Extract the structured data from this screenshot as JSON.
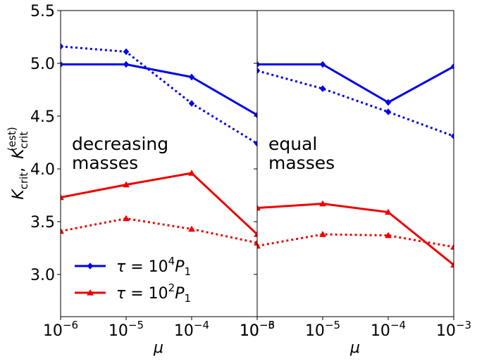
{
  "chart_data": [
    {
      "type": "line",
      "panel_label": [
        "decreasing",
        "masses"
      ],
      "xscale": "log",
      "xlim": [
        1e-06,
        0.001
      ],
      "ylim": [
        2.6,
        5.5
      ],
      "x": [
        1e-06,
        1e-05,
        0.0001,
        0.001
      ],
      "x_tick_labels": [
        "10",
        "10",
        "10",
        "10"
      ],
      "x_tick_exponents": [
        "−6",
        "−5",
        "−4",
        "−3"
      ],
      "y_ticks": [
        3.0,
        3.5,
        4.0,
        4.5,
        5.0,
        5.5
      ],
      "y_tick_labels": [
        "3.0",
        "3.5",
        "4.0",
        "4.5",
        "5.0",
        "5.5"
      ],
      "xlabel": "μ",
      "ylabel_main": "K",
      "ylabel_main_sub": "crit",
      "ylabel_sep": ",",
      "ylabel_est": "K",
      "ylabel_est_sub": "crit",
      "ylabel_est_sup": "(est)",
      "series": [
        {
          "name": "τ = 10⁴P₁",
          "style": "solid",
          "color": "#0000ee",
          "marker": "diamond",
          "values": [
            4.99,
            4.99,
            4.87,
            4.51
          ]
        },
        {
          "style": "dotted",
          "color": "#0000ee",
          "marker": "diamond",
          "values": [
            5.16,
            5.11,
            4.62,
            4.24
          ]
        },
        {
          "name": "τ = 10²P₁",
          "style": "solid",
          "color": "#ee0000",
          "marker": "triangle",
          "values": [
            3.73,
            3.85,
            3.96,
            3.38
          ]
        },
        {
          "style": "dotted",
          "color": "#ee0000",
          "marker": "triangle",
          "values": [
            3.41,
            3.53,
            3.43,
            3.3
          ]
        }
      ],
      "legend": {
        "placement": "lower-left",
        "entries": [
          {
            "base": "τ = 10",
            "sup": "4",
            "unit": "P",
            "sub": "1",
            "color": "#0000ee",
            "marker": "diamond"
          },
          {
            "base": "τ = 10",
            "sup": "2",
            "unit": "P",
            "sub": "1",
            "color": "#ee0000",
            "marker": "triangle"
          }
        ]
      }
    },
    {
      "type": "line",
      "panel_label": [
        "equal",
        "masses"
      ],
      "xscale": "log",
      "xlim": [
        1e-06,
        0.001
      ],
      "ylim": [
        2.6,
        5.5
      ],
      "x": [
        1e-06,
        1e-05,
        0.0001,
        0.001
      ],
      "x_tick_labels": [
        "10",
        "10",
        "10",
        "10"
      ],
      "x_tick_exponents": [
        "−6",
        "−5",
        "−4",
        "−3"
      ],
      "xlabel": "μ",
      "series": [
        {
          "style": "solid",
          "color": "#0000ee",
          "marker": "diamond",
          "values": [
            4.99,
            4.99,
            4.63,
            4.97
          ]
        },
        {
          "style": "dotted",
          "color": "#0000ee",
          "marker": "diamond",
          "values": [
            4.93,
            4.76,
            4.54,
            4.31
          ]
        },
        {
          "style": "solid",
          "color": "#ee0000",
          "marker": "triangle",
          "values": [
            3.63,
            3.67,
            3.59,
            3.09
          ]
        },
        {
          "style": "dotted",
          "color": "#ee0000",
          "marker": "triangle",
          "values": [
            3.27,
            3.38,
            3.37,
            3.26
          ]
        }
      ]
    }
  ]
}
